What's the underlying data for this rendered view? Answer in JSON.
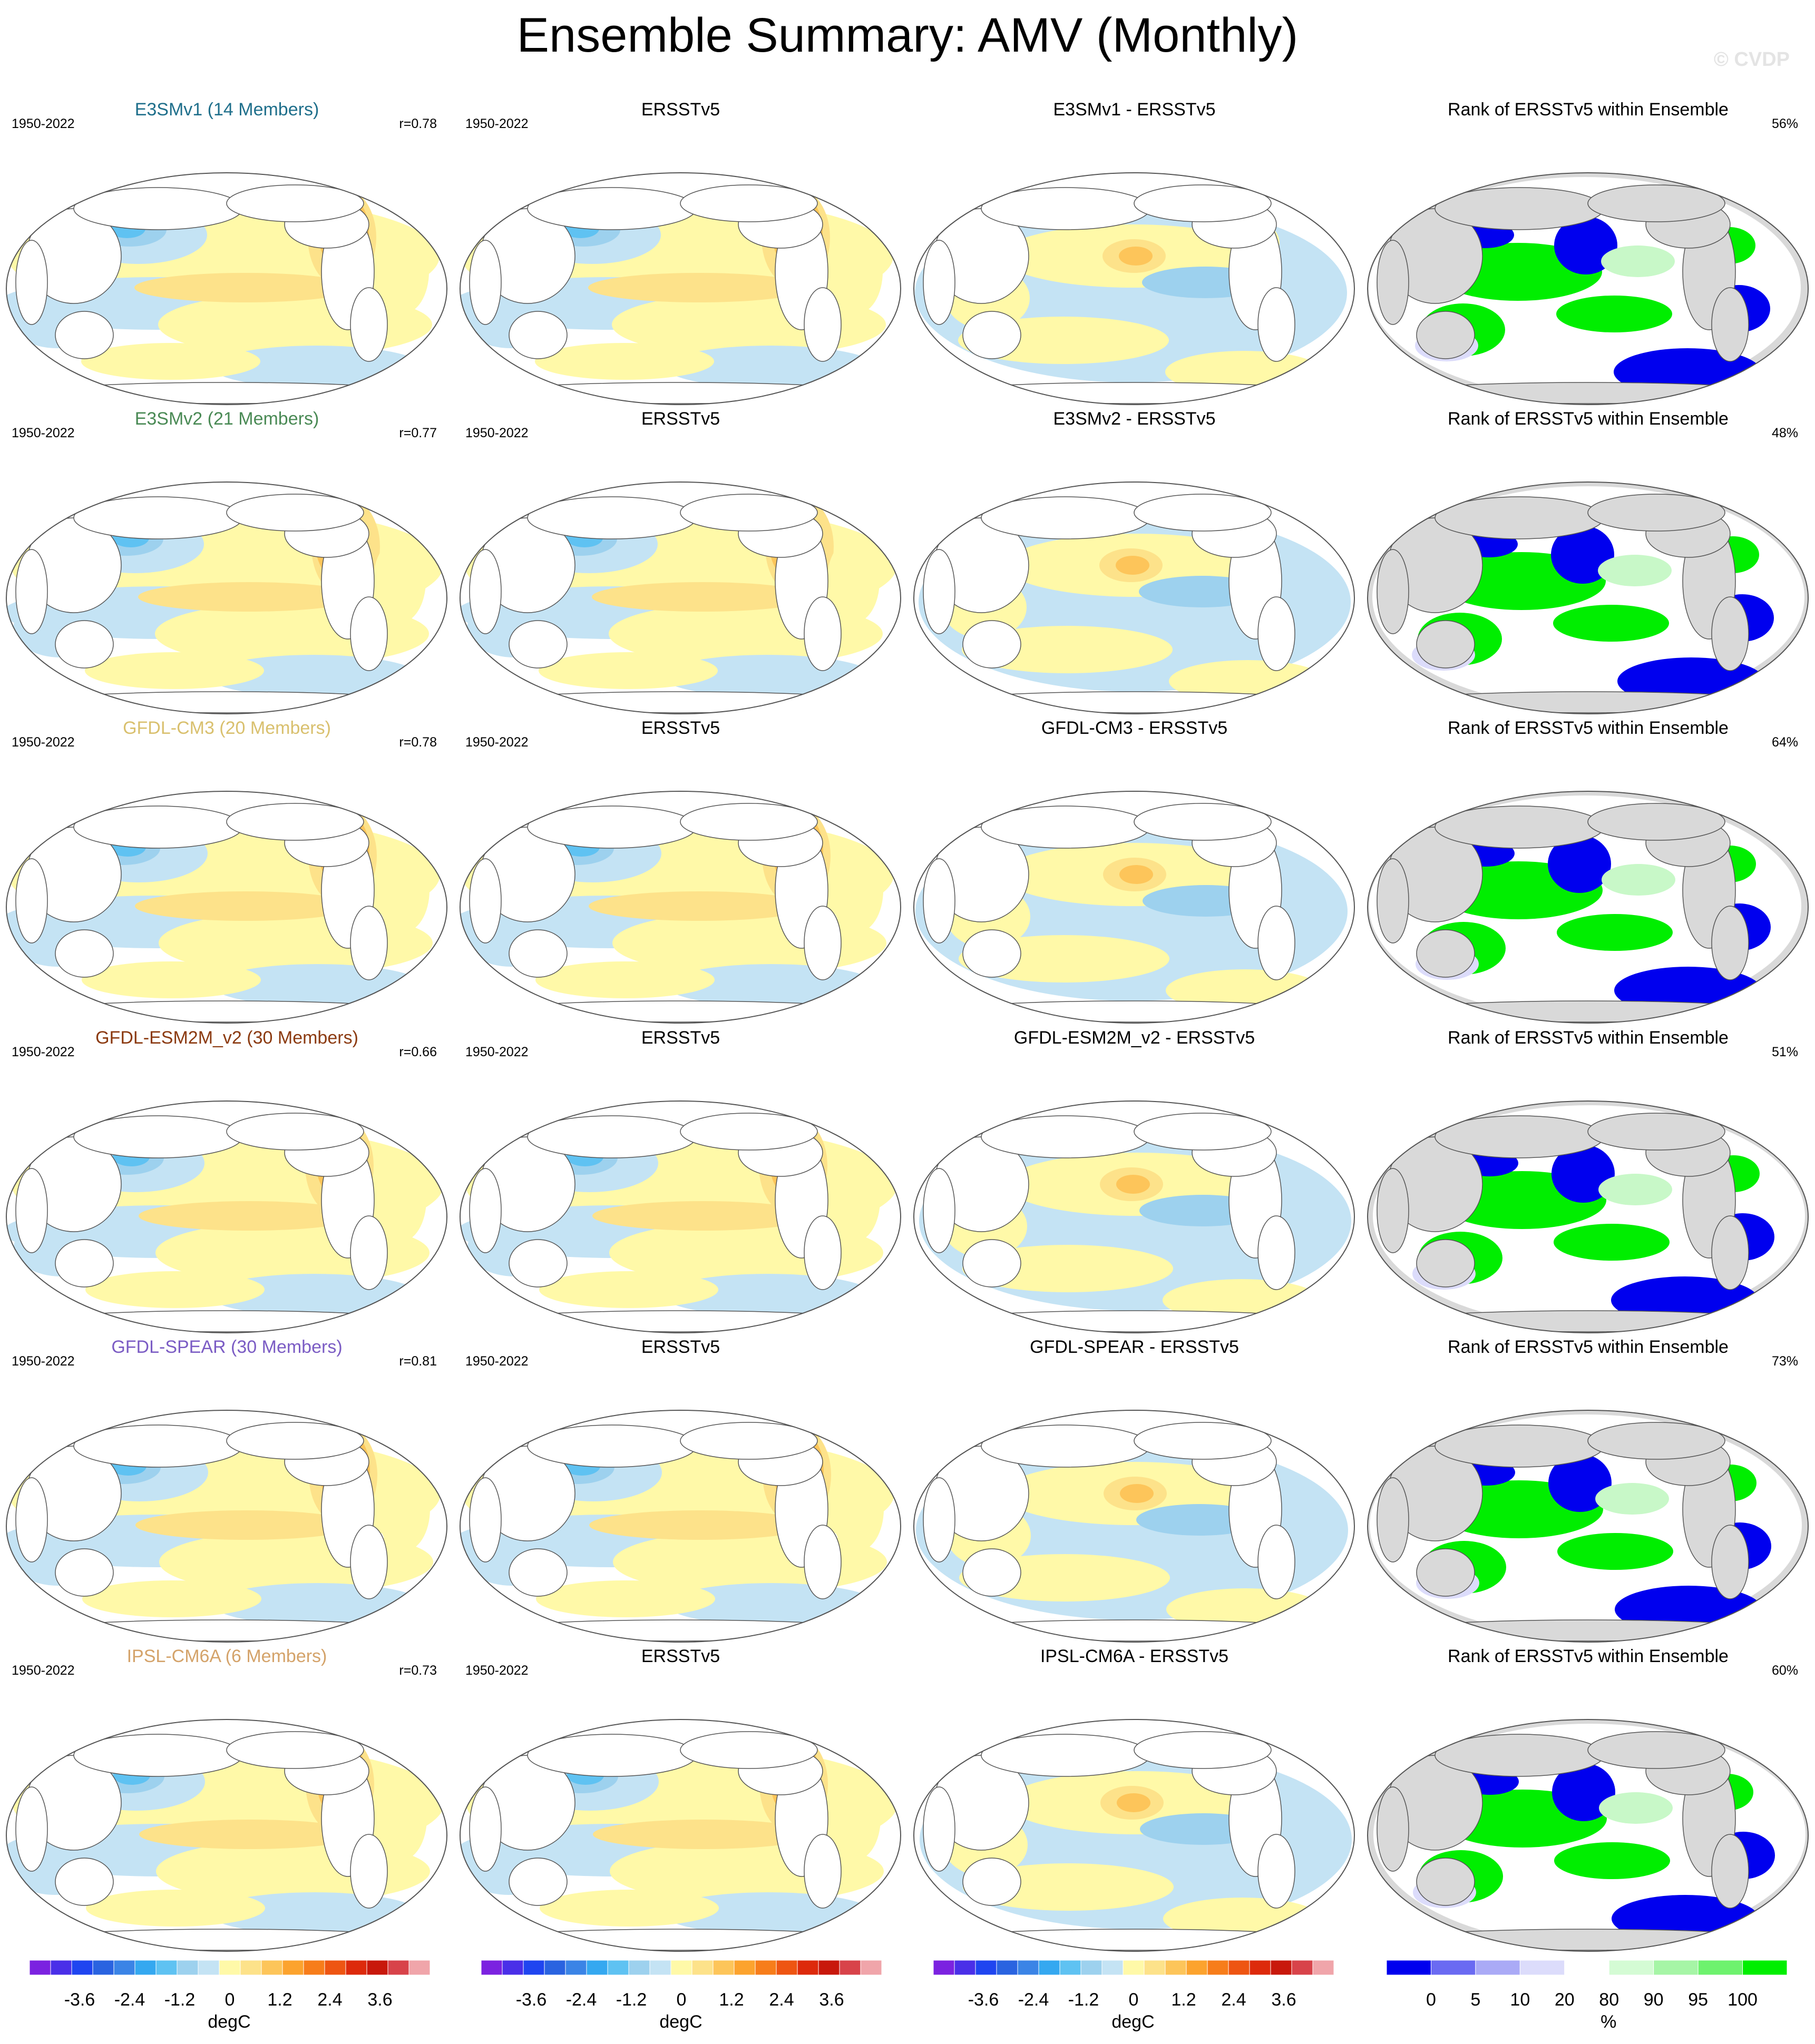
{
  "title": "Ensemble Summary: AMV (Monthly)",
  "watermark": "© CVDP",
  "rows": [
    {
      "model": "E3SMv1 (14 Members)",
      "model_color": "#1f6f8b",
      "years": "1950-2022",
      "r": "r=0.78",
      "obs_title": "ERSSTv5",
      "diff_title": "E3SMv1 - ERSSTv5",
      "rank_title": "Rank of ERSSTv5 within Ensemble",
      "rank_pct": "56%"
    },
    {
      "model": "E3SMv2 (21 Members)",
      "model_color": "#4a8a55",
      "years": "1950-2022",
      "r": "r=0.77",
      "obs_title": "ERSSTv5",
      "diff_title": "E3SMv2 - ERSSTv5",
      "rank_title": "Rank of ERSSTv5 within Ensemble",
      "rank_pct": "48%"
    },
    {
      "model": "GFDL-CM3 (20 Members)",
      "model_color": "#d9c06e",
      "years": "1950-2022",
      "r": "r=0.78",
      "obs_title": "ERSSTv5",
      "diff_title": "GFDL-CM3 - ERSSTv5",
      "rank_title": "Rank of ERSSTv5 within Ensemble",
      "rank_pct": "64%"
    },
    {
      "model": "GFDL-ESM2M_v2 (30 Members)",
      "model_color": "#8b3a10",
      "years": "1950-2022",
      "r": "r=0.66",
      "obs_title": "ERSSTv5",
      "diff_title": "GFDL-ESM2M_v2 - ERSSTv5",
      "rank_title": "Rank of ERSSTv5 within Ensemble",
      "rank_pct": "51%"
    },
    {
      "model": "GFDL-SPEAR (30 Members)",
      "model_color": "#7b5cc4",
      "years": "1950-2022",
      "r": "r=0.81",
      "obs_title": "ERSSTv5",
      "diff_title": "GFDL-SPEAR - ERSSTv5",
      "rank_title": "Rank of ERSSTv5 within Ensemble",
      "rank_pct": "73%"
    },
    {
      "model": "IPSL-CM6A (6 Members)",
      "model_color": "#d4a36a",
      "years": "1950-2022",
      "r": "r=0.73",
      "obs_title": "ERSSTv5",
      "diff_title": "IPSL-CM6A - ERSSTv5",
      "rank_title": "Rank of ERSSTv5 within Ensemble",
      "rank_pct": "60%"
    }
  ],
  "colorbars": {
    "sst": {
      "colors": [
        "#7b22e0",
        "#4a2fe8",
        "#1f45f0",
        "#2a63e0",
        "#3b84e6",
        "#35a8f0",
        "#5fc2f2",
        "#9dd1ee",
        "#c4e3f4",
        "#fff9a8",
        "#fde28a",
        "#fdc55a",
        "#fca32e",
        "#f77d1a",
        "#ee5512",
        "#dd2a0c",
        "#c8180c",
        "#d8434a",
        "#f0a5aa"
      ],
      "ticks": [
        "-3.6",
        "-2.4",
        "-1.2",
        "0",
        "1.2",
        "2.4",
        "3.6"
      ],
      "tick_values": [
        -3.6,
        -2.4,
        -1.2,
        0,
        1.2,
        2.4,
        3.6
      ],
      "range": [
        -4.8,
        4.8
      ],
      "unit": "degC"
    },
    "rank": {
      "colors": [
        "#0000ee",
        "#6a6af2",
        "#aaaaf6",
        "#dcdcfb",
        "#ffffff",
        "#d4fbd4",
        "#a6f5a6",
        "#6ef26e",
        "#00ee00"
      ],
      "bounds": [
        -5,
        0,
        5,
        10,
        20,
        80,
        90,
        95,
        100,
        105
      ],
      "ticks": [
        "0",
        "5",
        "10",
        "20",
        "80",
        "90",
        "95",
        "100"
      ],
      "unit": "%"
    }
  },
  "map_colors": {
    "ocean": "#ffffff",
    "land_rank": "#d9d9d9",
    "coast": "#555555",
    "warm1": "#fff9a8",
    "warm2": "#fde28a",
    "warm3": "#fdc55a",
    "warm4": "#fca32e",
    "warm5": "#f77d1a",
    "warm6": "#ee5512",
    "cool1": "#c4e3f4",
    "cool2": "#9dd1ee",
    "cool3": "#5fc2f2",
    "cool4": "#35a8f0",
    "rank_low": "#0000ee",
    "rank_high": "#00ee00",
    "rank_paleblue": "#dcdcfb",
    "rank_palegreen": "#c8f8c8"
  }
}
